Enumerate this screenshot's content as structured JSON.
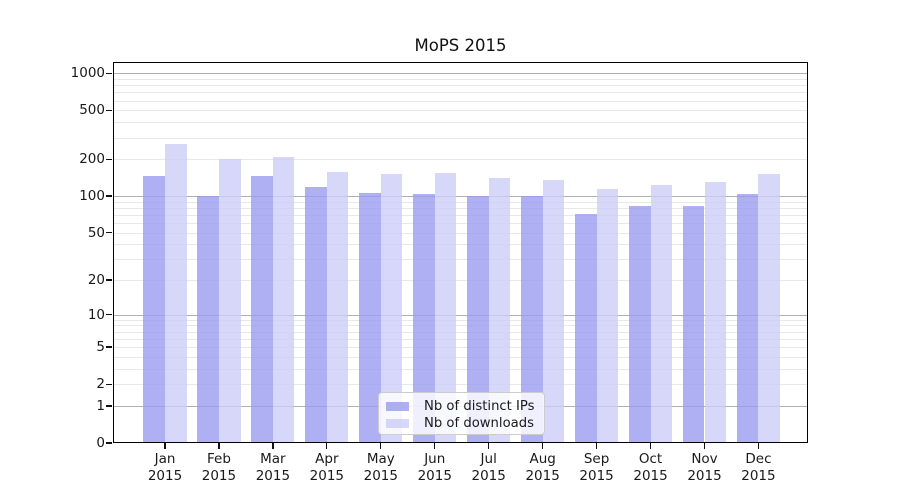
{
  "chart_data": {
    "type": "bar",
    "title": "MoPS 2015",
    "categories": [
      "Jan 2015",
      "Feb 2015",
      "Mar 2015",
      "Apr 2015",
      "May 2015",
      "Jun 2015",
      "Jul 2015",
      "Aug 2015",
      "Sep 2015",
      "Oct 2015",
      "Nov 2015",
      "Dec 2015"
    ],
    "month_labels": [
      "Jan",
      "Feb",
      "Mar",
      "Apr",
      "May",
      "Jun",
      "Jul",
      "Aug",
      "Sep",
      "Oct",
      "Nov",
      "Dec"
    ],
    "year_label": "2015",
    "series": [
      {
        "name": "Nb of distinct IPs",
        "color": "#9898f0",
        "values": [
          146,
          100,
          146,
          119,
          106,
          103,
          100,
          100,
          71,
          82,
          83,
          103
        ]
      },
      {
        "name": "Nb of downloads",
        "color": "#ccccf8",
        "values": [
          268,
          200,
          208,
          158,
          152,
          154,
          140,
          135,
          113,
          123,
          131,
          152
        ]
      }
    ],
    "y_axis": {
      "scale": "log1p",
      "tick_values": [
        0,
        1,
        2,
        5,
        10,
        20,
        50,
        100,
        200,
        500,
        1000
      ],
      "tick_labels": [
        "0",
        "1",
        "2",
        "5",
        "10",
        "20",
        "50",
        "100",
        "200",
        "500",
        "1000"
      ],
      "major_gridlines": [
        1,
        10,
        100,
        1000
      ],
      "minor_gridlines": [
        2,
        3,
        4,
        5,
        6,
        7,
        8,
        9,
        20,
        30,
        40,
        50,
        60,
        70,
        80,
        90,
        200,
        300,
        400,
        500,
        600,
        700,
        800,
        900
      ],
      "ylim": [
        0,
        1233
      ]
    },
    "legend": {
      "position": "lower-center"
    },
    "grid": true,
    "bar_opacity": 0.78,
    "colors": {
      "major_grid": "#b0b0b0",
      "minor_grid": "#e8e8e8",
      "axis": "#000000",
      "text": "#1a1a1a"
    }
  }
}
